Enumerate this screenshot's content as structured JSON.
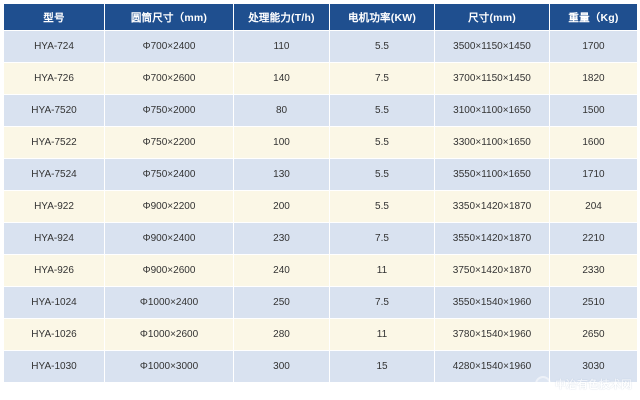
{
  "table": {
    "headers": [
      "型号",
      "圆筒尺寸（mm)",
      "处理能力(T/h)",
      "电机功率(KW)",
      "尺寸(mm)",
      "重量（Kg)"
    ],
    "rows": [
      [
        "HYA-724",
        "Φ700×2400",
        "110",
        "5.5",
        "3500×1150×1450",
        "1700"
      ],
      [
        "HYA-726",
        "Φ700×2600",
        "140",
        "7.5",
        "3700×1150×1450",
        "1820"
      ],
      [
        "HYA-7520",
        "Φ750×2000",
        "80",
        "5.5",
        "3100×1100×1650",
        "1500"
      ],
      [
        "HYA-7522",
        "Φ750×2200",
        "100",
        "5.5",
        "3300×1100×1650",
        "1600"
      ],
      [
        "HYA-7524",
        "Φ750×2400",
        "130",
        "5.5",
        "3550×1100×1650",
        "1710"
      ],
      [
        "HYA-922",
        "Φ900×2200",
        "200",
        "5.5",
        "3350×1420×1870",
        "204"
      ],
      [
        "HYA-924",
        "Φ900×2400",
        "230",
        "7.5",
        "3550×1420×1870",
        "2210"
      ],
      [
        "HYA-926",
        "Φ900×2600",
        "240",
        "11",
        "3750×1420×1870",
        "2330"
      ],
      [
        "HYA-1024",
        "Φ1000×2400",
        "250",
        "7.5",
        "3550×1540×1960",
        "2510"
      ],
      [
        "HYA-1026",
        "Φ1000×2600",
        "280",
        "11",
        "3780×1540×1960",
        "2650"
      ],
      [
        "HYA-1030",
        "Φ1000×3000",
        "300",
        "15",
        "4280×1540×1960",
        "3030"
      ]
    ]
  },
  "watermark": {
    "text": "中冶有色技术网"
  },
  "colors": {
    "header_bg": "#1f4f8f",
    "row_odd_bg": "#d9e2f0",
    "row_even_bg": "#fbf7e6"
  }
}
